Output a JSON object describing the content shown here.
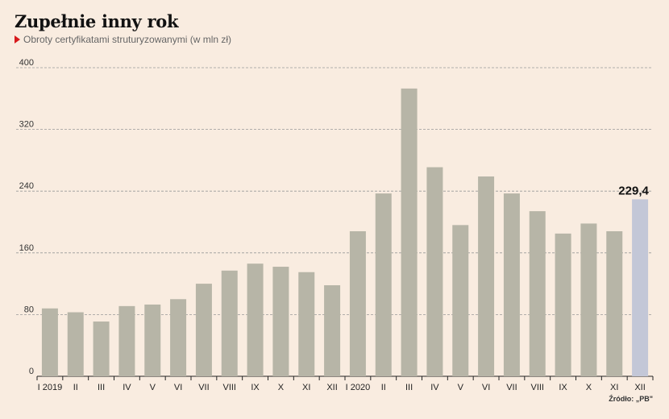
{
  "title": "Zupełnie inny rok",
  "subtitle": "Obroty certyfikatami struturyzowanymi (w mln zł)",
  "source": "Źródło: „PB\"",
  "colors": {
    "bar": "#b7b5a7",
    "highlight": "#c3c7d7",
    "grid": "#999",
    "background": "#f9ece0"
  },
  "chart_data": {
    "type": "bar",
    "title": "Zupełnie inny rok",
    "subtitle": "Obroty certyfikatami struturyzowanymi (w mln zł)",
    "categories": [
      "I 2019",
      "II",
      "III",
      "IV",
      "V",
      "VI",
      "VII",
      "VIII",
      "IX",
      "X",
      "XI",
      "XII",
      "I 2020",
      "II",
      "III",
      "IV",
      "V",
      "VI",
      "VII",
      "VIII",
      "IX",
      "X",
      "XI",
      "XII"
    ],
    "values": [
      88,
      83,
      71,
      91,
      93,
      100,
      120,
      137,
      146,
      142,
      135,
      118,
      188,
      237,
      373,
      271,
      196,
      259,
      237,
      214,
      185,
      198,
      188,
      229.4
    ],
    "highlight_index": 23,
    "highlight_label": "229,4",
    "ylim": [
      0,
      400
    ],
    "yticks": [
      0,
      80,
      160,
      240,
      320,
      400
    ],
    "grid": true
  }
}
